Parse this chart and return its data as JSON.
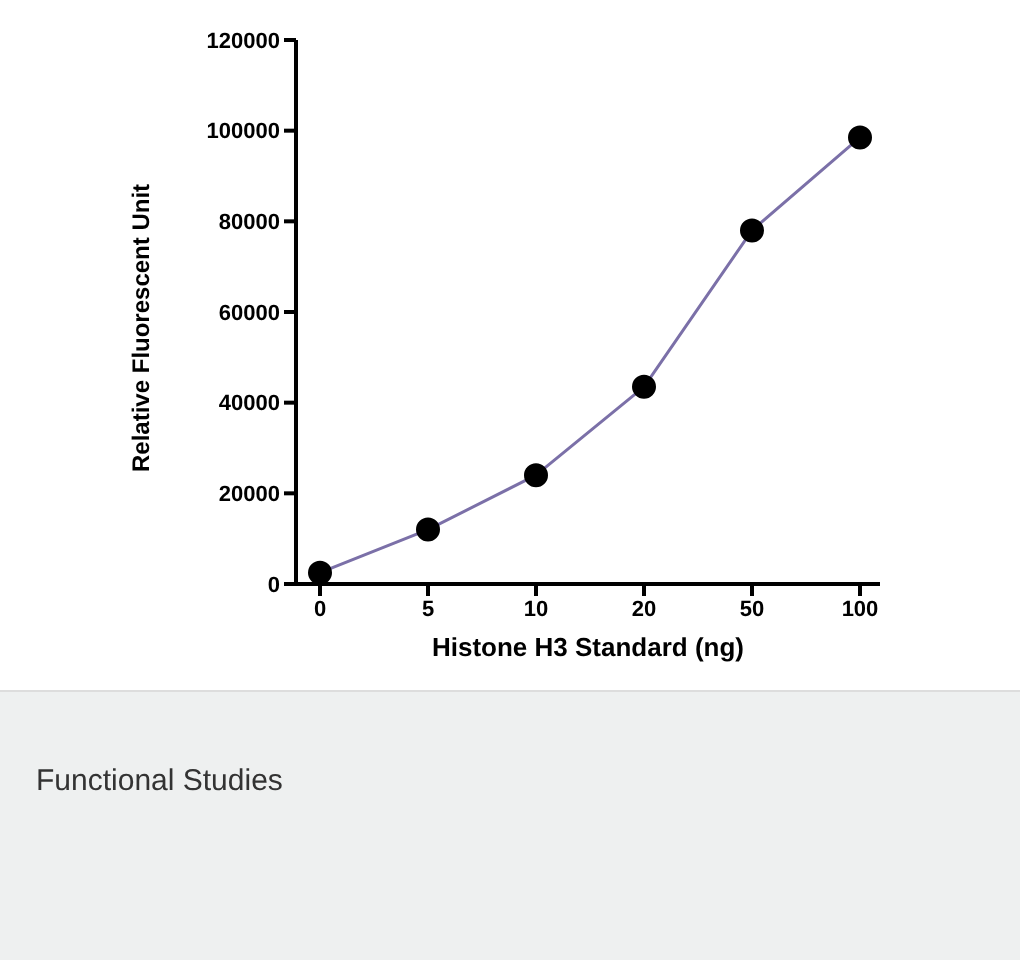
{
  "chart_data": {
    "type": "line",
    "xlabel": "Histone H3 Standard (ng)",
    "ylabel": "Relative Fluorescent Unit",
    "categories": [
      "0",
      "5",
      "10",
      "20",
      "50",
      "100"
    ],
    "series": [
      {
        "color": "#7b70a8",
        "values": [
          2500,
          12000,
          24000,
          43500,
          78000,
          98500
        ]
      }
    ],
    "ylim": [
      0,
      120000
    ],
    "yticks": [
      0,
      20000,
      40000,
      60000,
      80000,
      100000,
      120000
    ],
    "grid": false,
    "legend": false,
    "marker": "circle",
    "line_style": "solid",
    "annotations": [
      "Functional Studies"
    ]
  }
}
